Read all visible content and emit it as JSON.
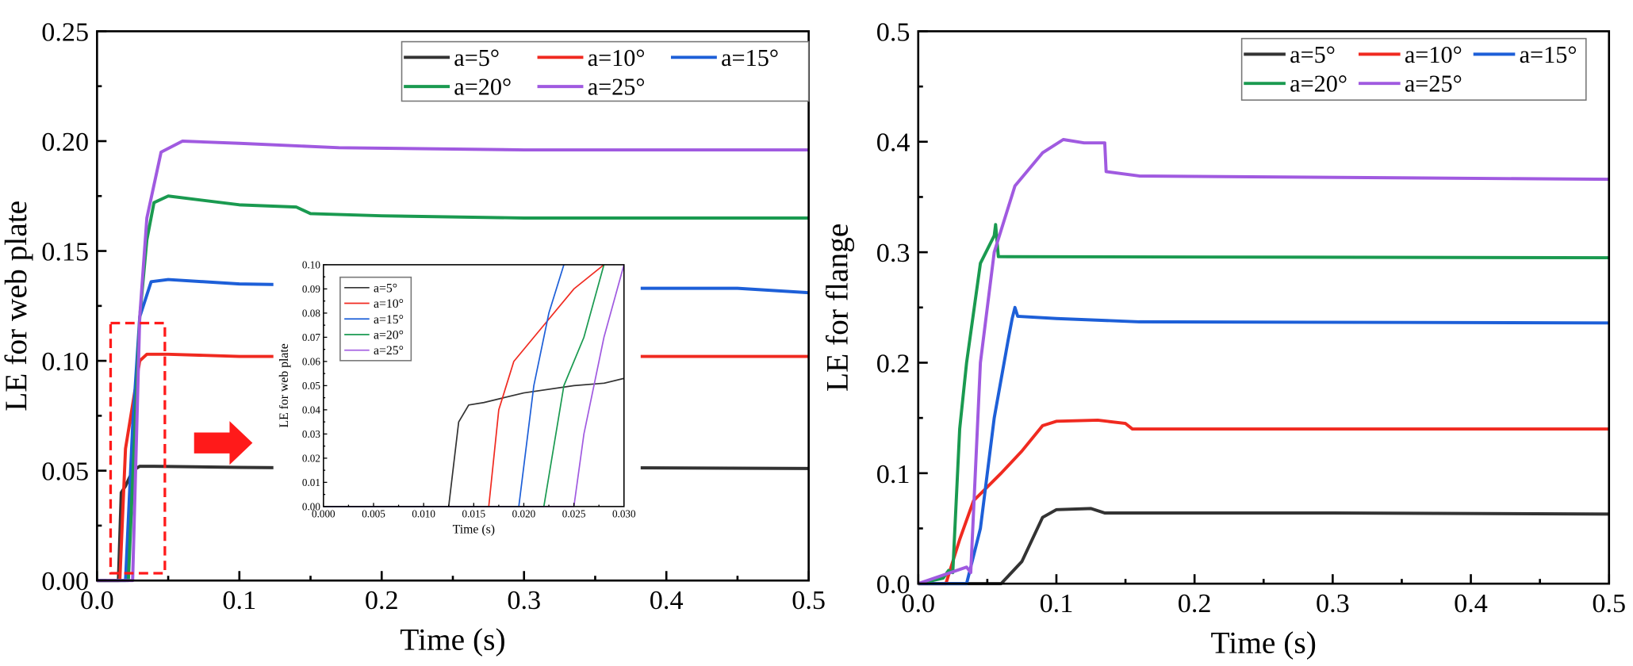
{
  "colors": {
    "a5": "#333333",
    "a10": "#f02a20",
    "a15": "#1d5fd8",
    "a20": "#1a9a50",
    "a25": "#a05ae0",
    "annotation": "#ff1a1a"
  },
  "chart_data": [
    {
      "id": "web",
      "type": "line",
      "title": "",
      "xlabel": "Time (s)",
      "ylabel": "LE for web plate",
      "xlim": [
        0,
        0.5
      ],
      "ylim": [
        0,
        0.25
      ],
      "xticks": [
        "0.0",
        "0.1",
        "0.2",
        "0.3",
        "0.4",
        "0.5"
      ],
      "yticks": [
        "0.00",
        "0.05",
        "0.10",
        "0.15",
        "0.20",
        "0.25"
      ],
      "legend": "top-right",
      "series": [
        {
          "name": "a=5°",
          "key": "a5",
          "points": [
            [
              0,
              0
            ],
            [
              0.015,
              0
            ],
            [
              0.017,
              0.04
            ],
            [
              0.02,
              0.043
            ],
            [
              0.025,
              0.05
            ],
            [
              0.03,
              0.052
            ],
            [
              0.04,
              0.052
            ],
            [
              0.1,
              0.0515
            ],
            [
              0.2,
              0.051
            ],
            [
              0.3,
              0.0515
            ],
            [
              0.5,
              0.051
            ]
          ]
        },
        {
          "name": "a=10°",
          "key": "a10",
          "points": [
            [
              0,
              0
            ],
            [
              0.016,
              0
            ],
            [
              0.02,
              0.06
            ],
            [
              0.025,
              0.08
            ],
            [
              0.03,
              0.1
            ],
            [
              0.035,
              0.103
            ],
            [
              0.05,
              0.103
            ],
            [
              0.1,
              0.102
            ],
            [
              0.3,
              0.102
            ],
            [
              0.5,
              0.102
            ]
          ]
        },
        {
          "name": "a=15°",
          "key": "a15",
          "points": [
            [
              0,
              0
            ],
            [
              0.02,
              0
            ],
            [
              0.025,
              0.07
            ],
            [
              0.03,
              0.12
            ],
            [
              0.038,
              0.136
            ],
            [
              0.05,
              0.137
            ],
            [
              0.1,
              0.135
            ],
            [
              0.3,
              0.133
            ],
            [
              0.45,
              0.133
            ],
            [
              0.5,
              0.131
            ]
          ]
        },
        {
          "name": "a=20°",
          "key": "a20",
          "points": [
            [
              0,
              0
            ],
            [
              0.022,
              0
            ],
            [
              0.03,
              0.12
            ],
            [
              0.035,
              0.155
            ],
            [
              0.04,
              0.172
            ],
            [
              0.05,
              0.175
            ],
            [
              0.1,
              0.171
            ],
            [
              0.14,
              0.17
            ],
            [
              0.15,
              0.167
            ],
            [
              0.2,
              0.166
            ],
            [
              0.3,
              0.165
            ],
            [
              0.5,
              0.165
            ]
          ]
        },
        {
          "name": "a=25°",
          "key": "a25",
          "points": [
            [
              0,
              0
            ],
            [
              0.025,
              0
            ],
            [
              0.03,
              0.12
            ],
            [
              0.035,
              0.165
            ],
            [
              0.045,
              0.195
            ],
            [
              0.06,
              0.2
            ],
            [
              0.1,
              0.199
            ],
            [
              0.17,
              0.197
            ],
            [
              0.3,
              0.196
            ],
            [
              0.5,
              0.196
            ]
          ]
        }
      ]
    },
    {
      "id": "inset",
      "type": "line",
      "title": "",
      "xlabel": "Time (s)",
      "ylabel": "LE for web plate",
      "xlim": [
        0,
        0.03
      ],
      "ylim": [
        0,
        0.1
      ],
      "xticks": [
        "0.000",
        "0.005",
        "0.010",
        "0.015",
        "0.020",
        "0.025",
        "0.030"
      ],
      "yticks": [
        "0.00",
        "0.01",
        "0.02",
        "0.03",
        "0.04",
        "0.05",
        "0.06",
        "0.07",
        "0.08",
        "0.09",
        "0.10"
      ],
      "legend": "top-left",
      "series": [
        {
          "name": "a=5°",
          "key": "a5",
          "points": [
            [
              0,
              0
            ],
            [
              0.0125,
              0
            ],
            [
              0.0135,
              0.035
            ],
            [
              0.0145,
              0.042
            ],
            [
              0.016,
              0.043
            ],
            [
              0.02,
              0.047
            ],
            [
              0.025,
              0.05
            ],
            [
              0.028,
              0.051
            ],
            [
              0.03,
              0.053
            ]
          ]
        },
        {
          "name": "a=10°",
          "key": "a10",
          "points": [
            [
              0,
              0
            ],
            [
              0.0165,
              0
            ],
            [
              0.0175,
              0.04
            ],
            [
              0.019,
              0.06
            ],
            [
              0.022,
              0.075
            ],
            [
              0.025,
              0.09
            ],
            [
              0.028,
              0.1
            ]
          ]
        },
        {
          "name": "a=15°",
          "key": "a15",
          "points": [
            [
              0,
              0
            ],
            [
              0.0195,
              0
            ],
            [
              0.021,
              0.05
            ],
            [
              0.0225,
              0.08
            ],
            [
              0.024,
              0.1
            ]
          ]
        },
        {
          "name": "a=20°",
          "key": "a20",
          "points": [
            [
              0,
              0
            ],
            [
              0.022,
              0
            ],
            [
              0.024,
              0.05
            ],
            [
              0.026,
              0.07
            ],
            [
              0.028,
              0.1
            ]
          ]
        },
        {
          "name": "a=25°",
          "key": "a25",
          "points": [
            [
              0,
              0
            ],
            [
              0.025,
              0
            ],
            [
              0.026,
              0.03
            ],
            [
              0.028,
              0.07
            ],
            [
              0.03,
              0.1
            ]
          ]
        }
      ]
    },
    {
      "id": "flange",
      "type": "line",
      "title": "",
      "xlabel": "Time (s)",
      "ylabel": "LE for flange",
      "xlim": [
        0,
        0.5
      ],
      "ylim": [
        0,
        0.5
      ],
      "xticks": [
        "0.0",
        "0.1",
        "0.2",
        "0.3",
        "0.4",
        "0.5"
      ],
      "yticks": [
        "0.0",
        "0.1",
        "0.2",
        "0.3",
        "0.4",
        "0.5"
      ],
      "legend": "top-right",
      "series": [
        {
          "name": "a=5°",
          "key": "a5",
          "points": [
            [
              0,
              0
            ],
            [
              0.06,
              0
            ],
            [
              0.075,
              0.02
            ],
            [
              0.09,
              0.06
            ],
            [
              0.1,
              0.067
            ],
            [
              0.125,
              0.068
            ],
            [
              0.135,
              0.064
            ],
            [
              0.3,
              0.064
            ],
            [
              0.5,
              0.063
            ]
          ]
        },
        {
          "name": "a=10°",
          "key": "a10",
          "points": [
            [
              0,
              0
            ],
            [
              0.02,
              0
            ],
            [
              0.03,
              0.04
            ],
            [
              0.04,
              0.075
            ],
            [
              0.06,
              0.1
            ],
            [
              0.075,
              0.12
            ],
            [
              0.09,
              0.143
            ],
            [
              0.1,
              0.147
            ],
            [
              0.13,
              0.148
            ],
            [
              0.15,
              0.145
            ],
            [
              0.155,
              0.14
            ],
            [
              0.5,
              0.14
            ]
          ]
        },
        {
          "name": "a=15°",
          "key": "a15",
          "points": [
            [
              0,
              0
            ],
            [
              0.035,
              0
            ],
            [
              0.045,
              0.05
            ],
            [
              0.055,
              0.15
            ],
            [
              0.065,
              0.22
            ],
            [
              0.068,
              0.24
            ],
            [
              0.07,
              0.25
            ],
            [
              0.072,
              0.242
            ],
            [
              0.1,
              0.24
            ],
            [
              0.16,
              0.237
            ],
            [
              0.5,
              0.236
            ]
          ]
        },
        {
          "name": "a=20°",
          "key": "a20",
          "points": [
            [
              0,
              0
            ],
            [
              0.018,
              0.005
            ],
            [
              0.022,
              0.012
            ],
            [
              0.025,
              0.01
            ],
            [
              0.03,
              0.14
            ],
            [
              0.035,
              0.2
            ],
            [
              0.045,
              0.29
            ],
            [
              0.055,
              0.315
            ],
            [
              0.056,
              0.325
            ],
            [
              0.058,
              0.296
            ],
            [
              0.5,
              0.295
            ]
          ]
        },
        {
          "name": "a=25°",
          "key": "a25",
          "points": [
            [
              0,
              0
            ],
            [
              0.035,
              0.015
            ],
            [
              0.038,
              0.01
            ],
            [
              0.045,
              0.2
            ],
            [
              0.055,
              0.3
            ],
            [
              0.07,
              0.36
            ],
            [
              0.09,
              0.39
            ],
            [
              0.105,
              0.402
            ],
            [
              0.12,
              0.399
            ],
            [
              0.135,
              0.399
            ],
            [
              0.136,
              0.373
            ],
            [
              0.16,
              0.369
            ],
            [
              0.5,
              0.366
            ]
          ]
        }
      ]
    }
  ]
}
